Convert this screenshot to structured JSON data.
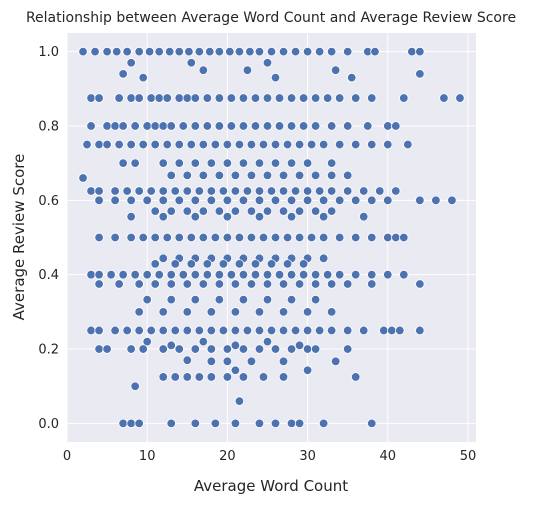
{
  "chart_data": {
    "type": "scatter",
    "title": "Relationship between Average Word Count and Average Review Score",
    "xlabel": "Average Word Count",
    "ylabel": "Average Review Score",
    "xlim": [
      0,
      51
    ],
    "ylim": [
      -0.05,
      1.05
    ],
    "xticks": [
      0,
      10,
      20,
      30,
      40,
      50
    ],
    "yticks": [
      0.0,
      0.2,
      0.4,
      0.6,
      0.8,
      1.0
    ],
    "xtick_labels": [
      "0",
      "10",
      "20",
      "30",
      "40",
      "50"
    ],
    "ytick_labels": [
      "0.0",
      "0.2",
      "0.4",
      "0.6",
      "0.8",
      "1.0"
    ],
    "grid": true,
    "style": "seaborn darkgrid",
    "colors": {
      "background": "#eaeaf2",
      "grid": "#ffffff",
      "marker": "#4c72b0",
      "marker_edge": "#ffffff"
    },
    "points": [
      [
        2.0,
        1.0
      ],
      [
        3.5,
        1.0
      ],
      [
        5.0,
        1.0
      ],
      [
        6.2,
        1.0
      ],
      [
        7.5,
        1.0
      ],
      [
        9.0,
        1.0
      ],
      [
        10.3,
        1.0
      ],
      [
        11.5,
        1.0
      ],
      [
        12.8,
        1.0
      ],
      [
        14.0,
        1.0
      ],
      [
        15.2,
        1.0
      ],
      [
        16.5,
        1.0
      ],
      [
        17.8,
        1.0
      ],
      [
        19.0,
        1.0
      ],
      [
        20.3,
        1.0
      ],
      [
        21.5,
        1.0
      ],
      [
        22.8,
        1.0
      ],
      [
        24.0,
        1.0
      ],
      [
        25.5,
        1.0
      ],
      [
        27.0,
        1.0
      ],
      [
        28.5,
        1.0
      ],
      [
        30.0,
        1.0
      ],
      [
        31.5,
        1.0
      ],
      [
        33.0,
        1.0
      ],
      [
        35.0,
        1.0
      ],
      [
        37.5,
        1.0
      ],
      [
        38.4,
        1.0
      ],
      [
        43.0,
        1.0
      ],
      [
        44.0,
        1.0
      ],
      [
        7.0,
        0.94
      ],
      [
        8.0,
        0.97
      ],
      [
        9.5,
        0.93
      ],
      [
        15.5,
        0.97
      ],
      [
        17.0,
        0.95
      ],
      [
        22.5,
        0.95
      ],
      [
        25.0,
        0.97
      ],
      [
        26.0,
        0.93
      ],
      [
        33.5,
        0.95
      ],
      [
        35.5,
        0.93
      ],
      [
        44.0,
        0.94
      ],
      [
        3.0,
        0.875
      ],
      [
        4.0,
        0.875
      ],
      [
        6.5,
        0.875
      ],
      [
        8.0,
        0.875
      ],
      [
        9.0,
        0.875
      ],
      [
        10.5,
        0.875
      ],
      [
        11.5,
        0.875
      ],
      [
        12.5,
        0.875
      ],
      [
        14.0,
        0.875
      ],
      [
        15.0,
        0.875
      ],
      [
        16.0,
        0.875
      ],
      [
        17.5,
        0.875
      ],
      [
        19.0,
        0.875
      ],
      [
        20.5,
        0.875
      ],
      [
        22.0,
        0.875
      ],
      [
        23.5,
        0.875
      ],
      [
        25.0,
        0.875
      ],
      [
        26.5,
        0.875
      ],
      [
        28.0,
        0.875
      ],
      [
        29.5,
        0.875
      ],
      [
        31.0,
        0.875
      ],
      [
        32.5,
        0.875
      ],
      [
        34.0,
        0.875
      ],
      [
        36.0,
        0.875
      ],
      [
        38.0,
        0.875
      ],
      [
        42.0,
        0.875
      ],
      [
        47.0,
        0.875
      ],
      [
        49.0,
        0.875
      ],
      [
        3.0,
        0.8
      ],
      [
        5.0,
        0.8
      ],
      [
        6.0,
        0.8
      ],
      [
        7.0,
        0.8
      ],
      [
        8.5,
        0.8
      ],
      [
        10.0,
        0.8
      ],
      [
        11.0,
        0.8
      ],
      [
        12.0,
        0.8
      ],
      [
        13.0,
        0.8
      ],
      [
        14.5,
        0.8
      ],
      [
        16.0,
        0.8
      ],
      [
        17.5,
        0.8
      ],
      [
        19.0,
        0.8
      ],
      [
        20.5,
        0.8
      ],
      [
        22.0,
        0.8
      ],
      [
        23.5,
        0.8
      ],
      [
        25.0,
        0.8
      ],
      [
        26.5,
        0.8
      ],
      [
        28.0,
        0.8
      ],
      [
        29.5,
        0.8
      ],
      [
        31.0,
        0.8
      ],
      [
        33.0,
        0.8
      ],
      [
        35.0,
        0.8
      ],
      [
        37.5,
        0.8
      ],
      [
        40.0,
        0.8
      ],
      [
        41.0,
        0.8
      ],
      [
        2.5,
        0.75
      ],
      [
        4.0,
        0.75
      ],
      [
        5.0,
        0.75
      ],
      [
        6.5,
        0.75
      ],
      [
        8.0,
        0.75
      ],
      [
        9.5,
        0.75
      ],
      [
        11.0,
        0.75
      ],
      [
        12.5,
        0.75
      ],
      [
        14.0,
        0.75
      ],
      [
        15.5,
        0.75
      ],
      [
        17.0,
        0.75
      ],
      [
        18.5,
        0.75
      ],
      [
        20.0,
        0.75
      ],
      [
        21.5,
        0.75
      ],
      [
        23.0,
        0.75
      ],
      [
        24.5,
        0.75
      ],
      [
        26.0,
        0.75
      ],
      [
        27.5,
        0.75
      ],
      [
        29.0,
        0.75
      ],
      [
        30.5,
        0.75
      ],
      [
        32.0,
        0.75
      ],
      [
        34.0,
        0.75
      ],
      [
        36.0,
        0.75
      ],
      [
        38.0,
        0.75
      ],
      [
        40.0,
        0.75
      ],
      [
        42.5,
        0.75
      ],
      [
        7.0,
        0.7
      ],
      [
        8.5,
        0.7
      ],
      [
        12.0,
        0.7
      ],
      [
        14.0,
        0.7
      ],
      [
        16.0,
        0.7
      ],
      [
        18.0,
        0.7
      ],
      [
        20.0,
        0.7
      ],
      [
        22.0,
        0.7
      ],
      [
        24.0,
        0.7
      ],
      [
        26.0,
        0.7
      ],
      [
        28.0,
        0.7
      ],
      [
        30.0,
        0.7
      ],
      [
        33.0,
        0.7
      ],
      [
        13.0,
        0.667
      ],
      [
        15.0,
        0.667
      ],
      [
        17.0,
        0.667
      ],
      [
        19.0,
        0.667
      ],
      [
        21.0,
        0.667
      ],
      [
        23.0,
        0.667
      ],
      [
        25.0,
        0.667
      ],
      [
        27.0,
        0.667
      ],
      [
        29.0,
        0.667
      ],
      [
        31.0,
        0.667
      ],
      [
        33.0,
        0.667
      ],
      [
        35.0,
        0.667
      ],
      [
        2.0,
        0.66
      ],
      [
        3.0,
        0.625
      ],
      [
        4.0,
        0.625
      ],
      [
        6.0,
        0.625
      ],
      [
        7.5,
        0.625
      ],
      [
        9.0,
        0.625
      ],
      [
        10.5,
        0.625
      ],
      [
        12.0,
        0.625
      ],
      [
        13.5,
        0.625
      ],
      [
        15.0,
        0.625
      ],
      [
        16.5,
        0.625
      ],
      [
        18.0,
        0.625
      ],
      [
        19.5,
        0.625
      ],
      [
        21.0,
        0.625
      ],
      [
        22.5,
        0.625
      ],
      [
        24.0,
        0.625
      ],
      [
        25.5,
        0.625
      ],
      [
        27.0,
        0.625
      ],
      [
        28.5,
        0.625
      ],
      [
        30.0,
        0.625
      ],
      [
        31.5,
        0.625
      ],
      [
        33.0,
        0.625
      ],
      [
        35.0,
        0.625
      ],
      [
        37.0,
        0.625
      ],
      [
        39.0,
        0.625
      ],
      [
        41.0,
        0.625
      ],
      [
        4.0,
        0.6
      ],
      [
        6.0,
        0.6
      ],
      [
        8.0,
        0.6
      ],
      [
        10.0,
        0.6
      ],
      [
        12.0,
        0.6
      ],
      [
        14.0,
        0.6
      ],
      [
        16.0,
        0.6
      ],
      [
        18.0,
        0.6
      ],
      [
        20.0,
        0.6
      ],
      [
        22.0,
        0.6
      ],
      [
        24.0,
        0.6
      ],
      [
        26.0,
        0.6
      ],
      [
        28.0,
        0.6
      ],
      [
        30.0,
        0.6
      ],
      [
        32.0,
        0.6
      ],
      [
        34.0,
        0.6
      ],
      [
        36.0,
        0.6
      ],
      [
        38.0,
        0.6
      ],
      [
        40.0,
        0.6
      ],
      [
        44.0,
        0.6
      ],
      [
        46.0,
        0.6
      ],
      [
        48.0,
        0.6
      ],
      [
        11.0,
        0.571
      ],
      [
        13.0,
        0.571
      ],
      [
        15.0,
        0.571
      ],
      [
        17.0,
        0.571
      ],
      [
        19.0,
        0.571
      ],
      [
        21.0,
        0.571
      ],
      [
        23.0,
        0.571
      ],
      [
        25.0,
        0.571
      ],
      [
        27.0,
        0.571
      ],
      [
        29.0,
        0.571
      ],
      [
        31.0,
        0.571
      ],
      [
        33.0,
        0.571
      ],
      [
        8.0,
        0.556
      ],
      [
        12.0,
        0.556
      ],
      [
        16.0,
        0.556
      ],
      [
        20.0,
        0.556
      ],
      [
        24.0,
        0.556
      ],
      [
        28.0,
        0.556
      ],
      [
        32.0,
        0.556
      ],
      [
        37.0,
        0.556
      ],
      [
        4.0,
        0.5
      ],
      [
        6.0,
        0.5
      ],
      [
        8.0,
        0.5
      ],
      [
        9.5,
        0.5
      ],
      [
        11.0,
        0.5
      ],
      [
        12.5,
        0.5
      ],
      [
        14.0,
        0.5
      ],
      [
        15.5,
        0.5
      ],
      [
        17.0,
        0.5
      ],
      [
        18.5,
        0.5
      ],
      [
        20.0,
        0.5
      ],
      [
        21.5,
        0.5
      ],
      [
        23.0,
        0.5
      ],
      [
        24.5,
        0.5
      ],
      [
        26.0,
        0.5
      ],
      [
        27.5,
        0.5
      ],
      [
        29.0,
        0.5
      ],
      [
        30.5,
        0.5
      ],
      [
        32.0,
        0.5
      ],
      [
        34.0,
        0.5
      ],
      [
        36.0,
        0.5
      ],
      [
        38.0,
        0.5
      ],
      [
        40.0,
        0.5
      ],
      [
        41.0,
        0.5
      ],
      [
        42.0,
        0.5
      ],
      [
        12.0,
        0.444
      ],
      [
        14.0,
        0.444
      ],
      [
        16.0,
        0.444
      ],
      [
        18.0,
        0.444
      ],
      [
        20.0,
        0.444
      ],
      [
        22.0,
        0.444
      ],
      [
        24.0,
        0.444
      ],
      [
        26.0,
        0.444
      ],
      [
        28.0,
        0.444
      ],
      [
        30.0,
        0.444
      ],
      [
        32.0,
        0.444
      ],
      [
        11.0,
        0.429
      ],
      [
        13.5,
        0.429
      ],
      [
        15.5,
        0.429
      ],
      [
        17.5,
        0.429
      ],
      [
        19.5,
        0.429
      ],
      [
        21.5,
        0.429
      ],
      [
        23.5,
        0.429
      ],
      [
        25.5,
        0.429
      ],
      [
        27.5,
        0.429
      ],
      [
        29.5,
        0.429
      ],
      [
        3.0,
        0.4
      ],
      [
        4.0,
        0.4
      ],
      [
        5.5,
        0.4
      ],
      [
        7.0,
        0.4
      ],
      [
        8.5,
        0.4
      ],
      [
        10.0,
        0.4
      ],
      [
        11.5,
        0.4
      ],
      [
        13.0,
        0.4
      ],
      [
        14.5,
        0.4
      ],
      [
        16.0,
        0.4
      ],
      [
        17.5,
        0.4
      ],
      [
        19.0,
        0.4
      ],
      [
        20.5,
        0.4
      ],
      [
        22.0,
        0.4
      ],
      [
        23.5,
        0.4
      ],
      [
        25.0,
        0.4
      ],
      [
        26.5,
        0.4
      ],
      [
        28.0,
        0.4
      ],
      [
        29.5,
        0.4
      ],
      [
        31.0,
        0.4
      ],
      [
        32.5,
        0.4
      ],
      [
        34.0,
        0.4
      ],
      [
        36.0,
        0.4
      ],
      [
        38.0,
        0.4
      ],
      [
        40.0,
        0.4
      ],
      [
        42.0,
        0.4
      ],
      [
        4.0,
        0.375
      ],
      [
        6.5,
        0.375
      ],
      [
        9.0,
        0.375
      ],
      [
        11.0,
        0.375
      ],
      [
        13.0,
        0.375
      ],
      [
        15.0,
        0.375
      ],
      [
        17.0,
        0.375
      ],
      [
        19.0,
        0.375
      ],
      [
        21.0,
        0.375
      ],
      [
        23.0,
        0.375
      ],
      [
        25.0,
        0.375
      ],
      [
        27.0,
        0.375
      ],
      [
        29.0,
        0.375
      ],
      [
        31.0,
        0.375
      ],
      [
        33.0,
        0.375
      ],
      [
        35.0,
        0.375
      ],
      [
        38.0,
        0.375
      ],
      [
        44.0,
        0.375
      ],
      [
        10.0,
        0.333
      ],
      [
        13.0,
        0.333
      ],
      [
        16.0,
        0.333
      ],
      [
        19.0,
        0.333
      ],
      [
        22.0,
        0.333
      ],
      [
        25.0,
        0.333
      ],
      [
        28.0,
        0.333
      ],
      [
        31.0,
        0.333
      ],
      [
        9.0,
        0.3
      ],
      [
        12.0,
        0.3
      ],
      [
        15.0,
        0.3
      ],
      [
        18.0,
        0.3
      ],
      [
        21.0,
        0.3
      ],
      [
        24.0,
        0.3
      ],
      [
        27.0,
        0.3
      ],
      [
        30.0,
        0.3
      ],
      [
        33.0,
        0.3
      ],
      [
        3.0,
        0.25
      ],
      [
        4.0,
        0.25
      ],
      [
        6.0,
        0.25
      ],
      [
        7.5,
        0.25
      ],
      [
        9.0,
        0.25
      ],
      [
        10.5,
        0.25
      ],
      [
        12.0,
        0.25
      ],
      [
        13.5,
        0.25
      ],
      [
        15.0,
        0.25
      ],
      [
        16.5,
        0.25
      ],
      [
        18.0,
        0.25
      ],
      [
        19.5,
        0.25
      ],
      [
        21.0,
        0.25
      ],
      [
        22.5,
        0.25
      ],
      [
        24.0,
        0.25
      ],
      [
        25.5,
        0.25
      ],
      [
        27.0,
        0.25
      ],
      [
        28.5,
        0.25
      ],
      [
        30.0,
        0.25
      ],
      [
        31.5,
        0.25
      ],
      [
        33.0,
        0.25
      ],
      [
        35.0,
        0.25
      ],
      [
        37.0,
        0.25
      ],
      [
        39.5,
        0.25
      ],
      [
        40.5,
        0.25
      ],
      [
        41.5,
        0.25
      ],
      [
        44.0,
        0.25
      ],
      [
        10.0,
        0.22
      ],
      [
        13.0,
        0.21
      ],
      [
        17.0,
        0.22
      ],
      [
        21.0,
        0.21
      ],
      [
        25.0,
        0.22
      ],
      [
        29.0,
        0.21
      ],
      [
        4.0,
        0.2
      ],
      [
        5.0,
        0.2
      ],
      [
        8.0,
        0.2
      ],
      [
        9.5,
        0.2
      ],
      [
        12.0,
        0.2
      ],
      [
        14.0,
        0.2
      ],
      [
        16.0,
        0.2
      ],
      [
        18.0,
        0.2
      ],
      [
        20.0,
        0.2
      ],
      [
        22.0,
        0.2
      ],
      [
        24.0,
        0.2
      ],
      [
        26.0,
        0.2
      ],
      [
        28.0,
        0.2
      ],
      [
        30.0,
        0.2
      ],
      [
        31.0,
        0.2
      ],
      [
        35.0,
        0.2
      ],
      [
        15.0,
        0.17
      ],
      [
        18.0,
        0.167
      ],
      [
        20.0,
        0.167
      ],
      [
        23.0,
        0.167
      ],
      [
        27.0,
        0.167
      ],
      [
        33.5,
        0.167
      ],
      [
        12.0,
        0.125
      ],
      [
        13.5,
        0.125
      ],
      [
        15.0,
        0.125
      ],
      [
        16.5,
        0.125
      ],
      [
        18.0,
        0.125
      ],
      [
        20.0,
        0.125
      ],
      [
        22.0,
        0.125
      ],
      [
        24.5,
        0.125
      ],
      [
        27.0,
        0.125
      ],
      [
        36.0,
        0.125
      ],
      [
        8.5,
        0.1
      ],
      [
        21.0,
        0.143
      ],
      [
        30.0,
        0.143
      ],
      [
        21.5,
        0.06
      ],
      [
        7.0,
        0.0
      ],
      [
        8.0,
        0.0
      ],
      [
        9.0,
        0.0
      ],
      [
        13.0,
        0.0
      ],
      [
        16.0,
        0.0
      ],
      [
        18.5,
        0.0
      ],
      [
        21.0,
        0.0
      ],
      [
        24.0,
        0.0
      ],
      [
        26.0,
        0.0
      ],
      [
        28.0,
        0.0
      ],
      [
        29.0,
        0.0
      ],
      [
        32.0,
        0.0
      ],
      [
        38.0,
        0.0
      ]
    ]
  }
}
